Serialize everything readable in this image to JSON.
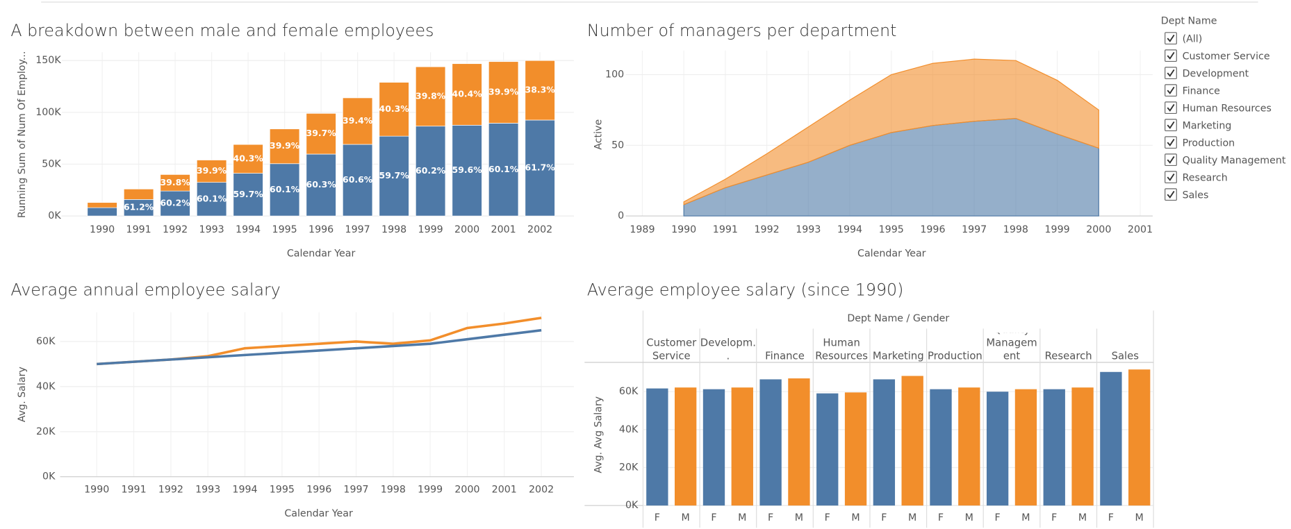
{
  "chart_data": [
    {
      "type": "bar",
      "stacked": true,
      "title": "A breakdown between male and female employees",
      "ylabel": "Running Sum of Num Of Employ...",
      "xlabel": "Calendar Year",
      "categories": [
        "1990",
        "1991",
        "1992",
        "1993",
        "1994",
        "1995",
        "1996",
        "1997",
        "1998",
        "1999",
        "2000",
        "2001",
        "2002"
      ],
      "ylim": [
        0,
        158000
      ],
      "yticks": [
        {
          "value": 0,
          "label": "0K"
        },
        {
          "value": 50000,
          "label": "50K"
        },
        {
          "value": 100000,
          "label": "100K"
        },
        {
          "value": 150000,
          "label": "150K"
        }
      ],
      "grid": true,
      "series": [
        {
          "color": "#4e79a7",
          "values": [
            8000,
            15900,
            24080,
            32450,
            41190,
            50480,
            59700,
            69080,
            77010,
            86690,
            87610,
            89550,
            92550
          ],
          "percent_labels": [
            null,
            "61.2%",
            "60.2%",
            "60.1%",
            "59.7%",
            "60.1%",
            "60.3%",
            "60.6%",
            "59.7%",
            "60.2%",
            "59.6%",
            "60.1%",
            "61.7%"
          ]
        },
        {
          "color": "#f28e2b",
          "values": [
            5000,
            10100,
            15920,
            21550,
            27810,
            33520,
            39300,
            44920,
            51990,
            57310,
            59390,
            59450,
            57450
          ],
          "percent_labels": [
            null,
            null,
            "39.8%",
            "39.9%",
            "40.3%",
            "39.9%",
            "39.7%",
            "39.4%",
            "40.3%",
            "39.8%",
            "40.4%",
            "39.9%",
            "38.3%"
          ]
        }
      ]
    },
    {
      "type": "area",
      "stacked": true,
      "title": "Number of managers per department",
      "ylabel": "Active",
      "xlabel": "Calendar Year",
      "x": [
        1990,
        1991,
        1992,
        1993,
        1994,
        1995,
        1996,
        1997,
        1998,
        1999,
        2000
      ],
      "xlim": [
        1988.6,
        2001.3
      ],
      "xticks": [
        1989,
        1990,
        1991,
        1992,
        1993,
        1994,
        1995,
        1996,
        1997,
        1998,
        1999,
        2000,
        2001
      ],
      "ylim": [
        0,
        117
      ],
      "yticks": [
        0,
        50,
        100
      ],
      "grid": true,
      "series": [
        {
          "color": "#4e79a7",
          "values": [
            8,
            20,
            29,
            38,
            50,
            59,
            64,
            67,
            69,
            58,
            48
          ]
        },
        {
          "color": "#f28e2b",
          "values": [
            2,
            6,
            15,
            25,
            32,
            41,
            44,
            44,
            41,
            38,
            27
          ]
        }
      ]
    },
    {
      "type": "line",
      "title": "Average annual employee salary",
      "ylabel": "Avg. Salary",
      "xlabel": "Calendar Year",
      "categories": [
        "1990",
        "1991",
        "1992",
        "1993",
        "1994",
        "1995",
        "1996",
        "1997",
        "1998",
        "1999",
        "2000",
        "2001",
        "2002"
      ],
      "ylim": [
        0,
        73000
      ],
      "yticks": [
        {
          "value": 0,
          "label": "0K"
        },
        {
          "value": 20000,
          "label": "20K"
        },
        {
          "value": 40000,
          "label": "40K"
        },
        {
          "value": 60000,
          "label": "60K"
        }
      ],
      "grid": true,
      "series": [
        {
          "color": "#f28e2b",
          "values": [
            50000,
            51000,
            52000,
            53500,
            57000,
            58000,
            59000,
            60000,
            59000,
            60500,
            66000,
            68000,
            70500
          ]
        },
        {
          "color": "#4e79a7",
          "values": [
            50000,
            51000,
            52000,
            53000,
            54000,
            55000,
            56000,
            57000,
            58000,
            59000,
            61000,
            63000,
            65000
          ]
        }
      ]
    },
    {
      "type": "bar",
      "grouped": true,
      "title": "Average employee salary (since 1990)",
      "header": "Dept Name / Gender",
      "ylabel": "Avg. Avg Salary",
      "categories": [
        "Customer Service",
        "Developm..",
        "Finance",
        "Human Resources",
        "Marketing",
        "Production",
        "Quality Management",
        "Research",
        "Sales"
      ],
      "ylim": [
        0,
        75000
      ],
      "yticks": [
        {
          "value": 0,
          "label": "0K"
        },
        {
          "value": 20000,
          "label": "20K"
        },
        {
          "value": 40000,
          "label": "40K"
        },
        {
          "value": 60000,
          "label": "60K"
        }
      ],
      "grid": true,
      "series": [
        {
          "name": "F",
          "color": "#4e79a7",
          "values": [
            61700,
            61300,
            66500,
            59100,
            66500,
            61300,
            60000,
            61300,
            70400
          ]
        },
        {
          "name": "M",
          "color": "#f28e2b",
          "values": [
            62200,
            62200,
            67000,
            59600,
            68300,
            62200,
            61300,
            62200,
            71700
          ]
        }
      ]
    }
  ],
  "filter": {
    "title": "Dept Name",
    "options": [
      "(All)",
      "Customer Service",
      "Development",
      "Finance",
      "Human Resources",
      "Marketing",
      "Production",
      "Quality Management",
      "Research",
      "Sales"
    ]
  }
}
